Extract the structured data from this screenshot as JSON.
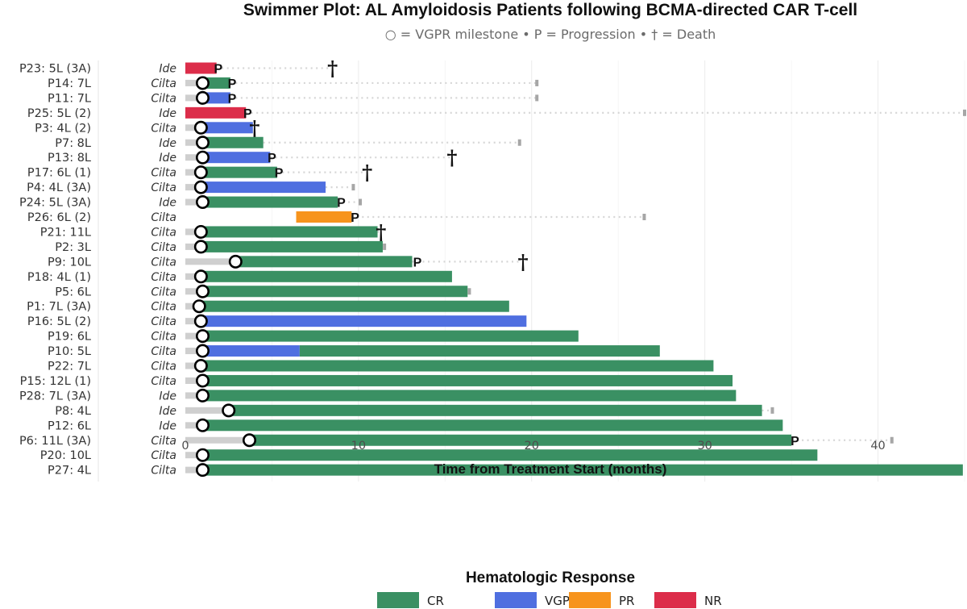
{
  "chart_data": {
    "type": "swimmer",
    "title": "Swimmer Plot: AL Amyloidosis Patients following BCMA-directed CAR T-cell",
    "subtitle": "○ = VGPR milestone • P = Progression • † = Death",
    "xlabel": "Time from Treatment Start (months)",
    "xlim": [
      0,
      45
    ],
    "xticks": [
      0,
      10,
      20,
      30,
      40
    ],
    "legend": {
      "title": "Hematologic Response",
      "position": "bottom",
      "items": [
        {
          "label": "CR",
          "color": "#3a9063"
        },
        {
          "label": "VGPR",
          "color": "#4f6fe0"
        },
        {
          "label": "PR",
          "color": "#f7941d"
        },
        {
          "label": "NR",
          "color": "#dc2d4a"
        }
      ]
    },
    "colors": {
      "CR": "#3a9063",
      "VGPR": "#4f6fe0",
      "PR": "#f7941d",
      "NR": "#dc2d4a",
      "pre": "#cfcfcf",
      "follow": "#d6d6d6"
    },
    "patients": [
      {
        "label": "P23: 5L (3A)",
        "product": "Ide",
        "segments": [
          {
            "start": 0,
            "end": 1.8,
            "response": "NR"
          }
        ],
        "vgpr": null,
        "progression": 1.9,
        "death": 8.5,
        "followup_end": null
      },
      {
        "label": "P14: 7L",
        "product": "Cilta",
        "segments": [
          {
            "start": 0,
            "end": 1.0,
            "response": "pre"
          },
          {
            "start": 1.0,
            "end": 2.6,
            "response": "CR"
          }
        ],
        "vgpr": 1.0,
        "progression": 2.7,
        "death": null,
        "followup_end": 20.3
      },
      {
        "label": "P11: 7L",
        "product": "Cilta",
        "segments": [
          {
            "start": 0,
            "end": 1.0,
            "response": "pre"
          },
          {
            "start": 1.0,
            "end": 2.6,
            "response": "VGPR"
          }
        ],
        "vgpr": 1.0,
        "progression": 2.7,
        "death": null,
        "followup_end": 20.3
      },
      {
        "label": "P25: 5L (2)",
        "product": "Ide",
        "segments": [
          {
            "start": 0,
            "end": 3.5,
            "response": "NR"
          }
        ],
        "vgpr": null,
        "progression": 3.6,
        "death": null,
        "followup_end": 45.0
      },
      {
        "label": "P3: 4L (2)",
        "product": "Cilta",
        "segments": [
          {
            "start": 0,
            "end": 0.9,
            "response": "pre"
          },
          {
            "start": 0.9,
            "end": 3.9,
            "response": "VGPR"
          }
        ],
        "vgpr": 0.9,
        "progression": null,
        "death": 4.0,
        "followup_end": null
      },
      {
        "label": "P7: 8L",
        "product": "Ide",
        "segments": [
          {
            "start": 0,
            "end": 1.0,
            "response": "pre"
          },
          {
            "start": 1.0,
            "end": 4.5,
            "response": "CR"
          }
        ],
        "vgpr": 1.0,
        "progression": null,
        "death": null,
        "followup_end": 19.3
      },
      {
        "label": "P13: 8L",
        "product": "Ide",
        "segments": [
          {
            "start": 0,
            "end": 1.0,
            "response": "pre"
          },
          {
            "start": 1.0,
            "end": 4.9,
            "response": "VGPR"
          }
        ],
        "vgpr": 1.0,
        "progression": 5.0,
        "death": 15.4,
        "followup_end": null
      },
      {
        "label": "P17: 6L (1)",
        "product": "Cilta",
        "segments": [
          {
            "start": 0,
            "end": 0.9,
            "response": "pre"
          },
          {
            "start": 0.9,
            "end": 5.3,
            "response": "CR"
          }
        ],
        "vgpr": 0.9,
        "progression": 5.4,
        "death": 10.5,
        "followup_end": null
      },
      {
        "label": "P4: 4L (3A)",
        "product": "Cilta",
        "segments": [
          {
            "start": 0,
            "end": 0.9,
            "response": "pre"
          },
          {
            "start": 0.9,
            "end": 8.1,
            "response": "VGPR"
          }
        ],
        "vgpr": 0.9,
        "progression": null,
        "death": null,
        "followup_end": 9.7
      },
      {
        "label": "P24: 5L (3A)",
        "product": "Ide",
        "segments": [
          {
            "start": 0,
            "end": 1.0,
            "response": "pre"
          },
          {
            "start": 1.0,
            "end": 8.8,
            "response": "CR"
          }
        ],
        "vgpr": 1.0,
        "progression": 9.0,
        "death": null,
        "followup_end": 10.1
      },
      {
        "label": "P26: 6L (2)",
        "product": "Cilta",
        "segments": [
          {
            "start": 6.4,
            "end": 9.6,
            "response": "PR"
          }
        ],
        "vgpr": null,
        "progression": 9.8,
        "death": null,
        "followup_end": 26.5
      },
      {
        "label": "P21: 11L",
        "product": "Cilta",
        "segments": [
          {
            "start": 0,
            "end": 0.9,
            "response": "pre"
          },
          {
            "start": 0.9,
            "end": 11.1,
            "response": "CR"
          }
        ],
        "vgpr": 0.9,
        "progression": null,
        "death": 11.3,
        "followup_end": null
      },
      {
        "label": "P2: 3L",
        "product": "Cilta",
        "segments": [
          {
            "start": 0,
            "end": 0.9,
            "response": "pre"
          },
          {
            "start": 0.9,
            "end": 11.4,
            "response": "CR"
          }
        ],
        "vgpr": 0.9,
        "progression": null,
        "death": null,
        "followup_end": 11.5
      },
      {
        "label": "P9: 10L",
        "product": "Cilta",
        "segments": [
          {
            "start": 0,
            "end": 2.9,
            "response": "pre"
          },
          {
            "start": 2.9,
            "end": 13.1,
            "response": "CR"
          }
        ],
        "vgpr": 2.9,
        "progression": 13.4,
        "death": 19.5,
        "followup_end": null
      },
      {
        "label": "P18: 4L (1)",
        "product": "Cilta",
        "segments": [
          {
            "start": 0,
            "end": 0.9,
            "response": "pre"
          },
          {
            "start": 0.9,
            "end": 15.4,
            "response": "CR"
          }
        ],
        "vgpr": 0.9,
        "progression": null,
        "death": null,
        "followup_end": null
      },
      {
        "label": "P5: 6L",
        "product": "Cilta",
        "segments": [
          {
            "start": 0,
            "end": 1.0,
            "response": "pre"
          },
          {
            "start": 1.0,
            "end": 16.3,
            "response": "CR"
          }
        ],
        "vgpr": 1.0,
        "progression": null,
        "death": null,
        "followup_end": 16.4
      },
      {
        "label": "P1: 7L (3A)",
        "product": "Cilta",
        "segments": [
          {
            "start": 0,
            "end": 0.8,
            "response": "pre"
          },
          {
            "start": 0.8,
            "end": 18.7,
            "response": "CR"
          }
        ],
        "vgpr": 0.8,
        "progression": null,
        "death": null,
        "followup_end": null
      },
      {
        "label": "P16: 5L (2)",
        "product": "Cilta",
        "segments": [
          {
            "start": 0,
            "end": 0.9,
            "response": "pre"
          },
          {
            "start": 0.9,
            "end": 19.7,
            "response": "VGPR"
          }
        ],
        "vgpr": 0.9,
        "progression": null,
        "death": null,
        "followup_end": null
      },
      {
        "label": "P19: 6L",
        "product": "Cilta",
        "segments": [
          {
            "start": 0,
            "end": 1.0,
            "response": "pre"
          },
          {
            "start": 1.0,
            "end": 22.7,
            "response": "CR"
          }
        ],
        "vgpr": 1.0,
        "progression": null,
        "death": null,
        "followup_end": null
      },
      {
        "label": "P10: 5L",
        "product": "Cilta",
        "segments": [
          {
            "start": 0,
            "end": 1.0,
            "response": "pre"
          },
          {
            "start": 1.0,
            "end": 6.6,
            "response": "VGPR"
          },
          {
            "start": 6.6,
            "end": 27.4,
            "response": "CR"
          }
        ],
        "vgpr": 1.0,
        "progression": null,
        "death": null,
        "followup_end": null
      },
      {
        "label": "P22: 7L",
        "product": "Cilta",
        "segments": [
          {
            "start": 0,
            "end": 0.9,
            "response": "pre"
          },
          {
            "start": 0.9,
            "end": 30.5,
            "response": "CR"
          }
        ],
        "vgpr": 0.9,
        "progression": null,
        "death": null,
        "followup_end": null
      },
      {
        "label": "P15: 12L (1)",
        "product": "Cilta",
        "segments": [
          {
            "start": 0,
            "end": 1.0,
            "response": "pre"
          },
          {
            "start": 1.0,
            "end": 31.6,
            "response": "CR"
          }
        ],
        "vgpr": 1.0,
        "progression": null,
        "death": null,
        "followup_end": null
      },
      {
        "label": "P28: 7L (3A)",
        "product": "Ide",
        "segments": [
          {
            "start": 0,
            "end": 1.0,
            "response": "pre"
          },
          {
            "start": 1.0,
            "end": 31.8,
            "response": "CR"
          }
        ],
        "vgpr": 1.0,
        "progression": null,
        "death": null,
        "followup_end": null
      },
      {
        "label": "P8: 4L",
        "product": "Ide",
        "segments": [
          {
            "start": 0,
            "end": 2.5,
            "response": "pre"
          },
          {
            "start": 2.5,
            "end": 33.3,
            "response": "CR"
          }
        ],
        "vgpr": 2.5,
        "progression": null,
        "death": null,
        "followup_end": 33.9
      },
      {
        "label": "P12: 6L",
        "product": "Ide",
        "segments": [
          {
            "start": 0,
            "end": 1.0,
            "response": "pre"
          },
          {
            "start": 1.0,
            "end": 34.5,
            "response": "CR"
          }
        ],
        "vgpr": 1.0,
        "progression": null,
        "death": null,
        "followup_end": null
      },
      {
        "label": "P6: 11L (3A)",
        "product": "Cilta",
        "segments": [
          {
            "start": 0,
            "end": 3.7,
            "response": "pre"
          },
          {
            "start": 3.7,
            "end": 35.0,
            "response": "CR"
          }
        ],
        "vgpr": 3.7,
        "progression": 35.2,
        "death": null,
        "followup_end": 40.8
      },
      {
        "label": "P20: 10L",
        "product": "Cilta",
        "segments": [
          {
            "start": 0,
            "end": 1.0,
            "response": "pre"
          },
          {
            "start": 1.0,
            "end": 36.5,
            "response": "CR"
          }
        ],
        "vgpr": 1.0,
        "progression": null,
        "death": null,
        "followup_end": null
      },
      {
        "label": "P27: 4L",
        "product": "Cilta",
        "segments": [
          {
            "start": 0,
            "end": 1.0,
            "response": "pre"
          },
          {
            "start": 1.0,
            "end": 44.9,
            "response": "CR"
          }
        ],
        "vgpr": 1.0,
        "progression": null,
        "death": null,
        "followup_end": null
      }
    ]
  }
}
